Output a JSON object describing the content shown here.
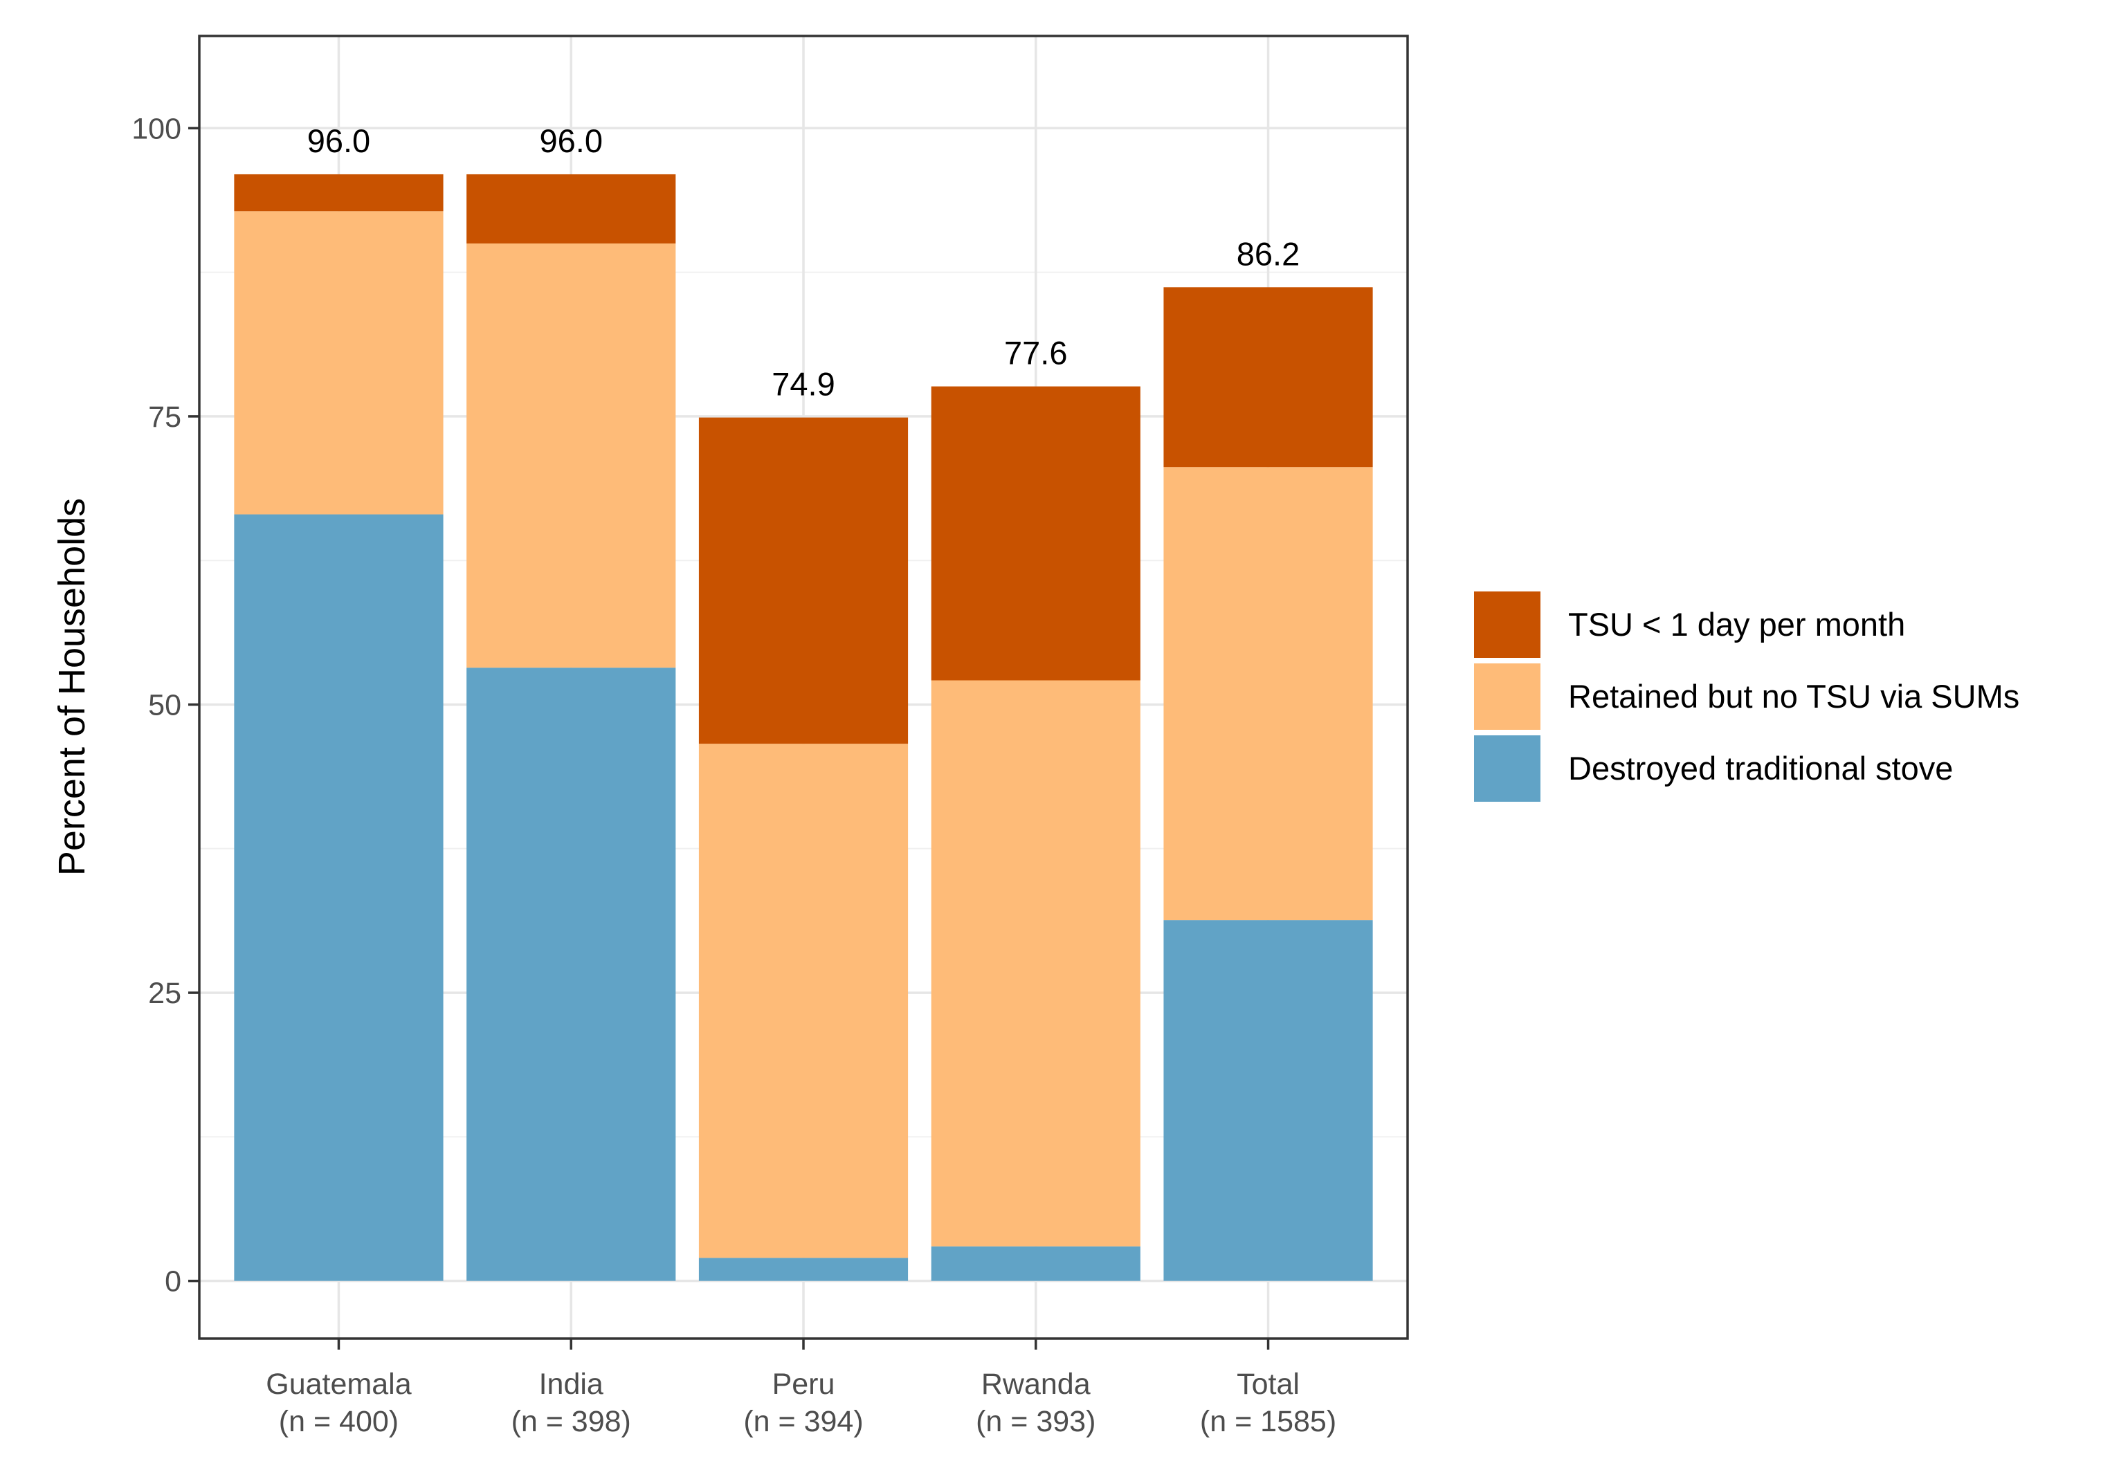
{
  "chart_data": {
    "type": "bar",
    "stacked": true,
    "title": "",
    "xlabel": "",
    "ylabel": "Percent of Households",
    "ylim": [
      -5,
      108
    ],
    "yticks": [
      0,
      25,
      50,
      75,
      100
    ],
    "categories": [
      "Guatemala",
      "India",
      "Peru",
      "Rwanda",
      "Total"
    ],
    "category_notes": [
      "(n = 400)",
      "(n = 398)",
      "(n = 394)",
      "(n = 393)",
      "(n = 1585)"
    ],
    "series": [
      {
        "name": "Destroyed traditional stove",
        "color": "#61A3C6",
        "values": [
          66.5,
          53.2,
          2.0,
          3.0,
          31.3
        ]
      },
      {
        "name": "Retained but no TSU via SUMs",
        "color": "#FEBB78",
        "values": [
          26.3,
          36.8,
          44.6,
          49.1,
          39.3
        ]
      },
      {
        "name": "TSU < 1 day per month",
        "color": "#C85200",
        "values": [
          3.2,
          6.0,
          28.3,
          25.5,
          15.6
        ]
      }
    ],
    "totals": [
      96.0,
      96.0,
      74.9,
      77.6,
      86.2
    ],
    "total_labels": [
      "96.0",
      "96.0",
      "74.9",
      "77.6",
      "86.2"
    ],
    "legend": {
      "position": "right",
      "entries": [
        "TSU < 1 day per month",
        "Retained but no TSU via SUMs",
        "Destroyed traditional stove"
      ]
    },
    "grid": true
  }
}
